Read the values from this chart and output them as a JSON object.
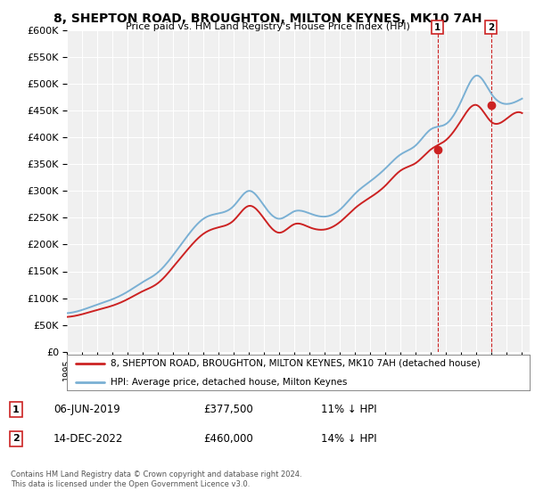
{
  "title": "8, SHEPTON ROAD, BROUGHTON, MILTON KEYNES, MK10 7AH",
  "subtitle": "Price paid vs. HM Land Registry's House Price Index (HPI)",
  "legend_label1": "8, SHEPTON ROAD, BROUGHTON, MILTON KEYNES, MK10 7AH (detached house)",
  "legend_label2": "HPI: Average price, detached house, Milton Keynes",
  "annotation1_date": "06-JUN-2019",
  "annotation1_price": "£377,500",
  "annotation1_hpi": "11% ↓ HPI",
  "annotation2_date": "14-DEC-2022",
  "annotation2_price": "£460,000",
  "annotation2_hpi": "14% ↓ HPI",
  "footer": "Contains HM Land Registry data © Crown copyright and database right 2024.\nThis data is licensed under the Open Government Licence v3.0.",
  "sale1_year": 2019.43,
  "sale1_price": 377500,
  "sale2_year": 2022.95,
  "sale2_price": 460000,
  "hpi_color": "#7ab0d4",
  "sale_color": "#cc2222",
  "ylim_min": 0,
  "ylim_max": 600000,
  "background_color": "#ffffff",
  "plot_bg_color": "#f0f0f0"
}
